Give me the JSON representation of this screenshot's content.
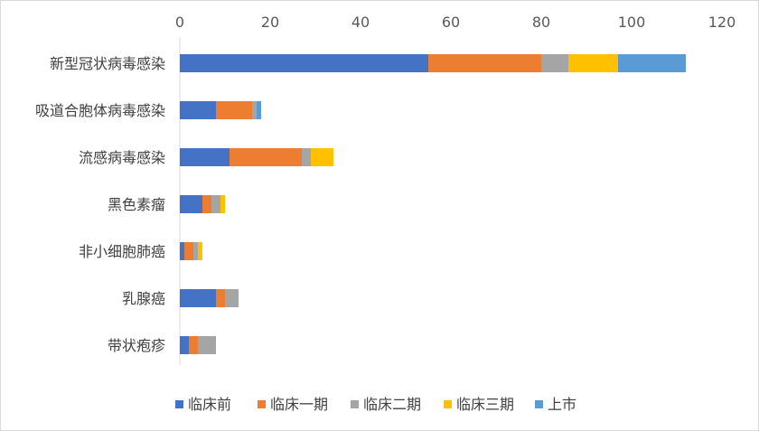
{
  "chart_data": {
    "type": "bar",
    "orientation": "horizontal",
    "stacked": true,
    "title": "",
    "xlabel": "",
    "ylabel": "",
    "xlim": [
      0,
      120
    ],
    "x_ticks": [
      "0",
      "20",
      "40",
      "60",
      "80",
      "100",
      "120"
    ],
    "x_tick_values": [
      0,
      20,
      40,
      60,
      80,
      100,
      120
    ],
    "x_axis_position": "top",
    "grid": false,
    "legend_position": "bottom",
    "categories": [
      "新型冠状病毒感染",
      "吸道合胞体病毒感染",
      "流感病毒感染",
      "黑色素瘤",
      "非小细胞肺癌",
      "乳腺癌",
      "带状疱疹"
    ],
    "series": [
      {
        "name": "临床前",
        "color": "#4472c4",
        "values": [
          55,
          8,
          11,
          5,
          1,
          8,
          2
        ]
      },
      {
        "name": "临床一期",
        "color": "#ed7d31",
        "values": [
          25,
          8,
          16,
          2,
          2,
          2,
          2
        ]
      },
      {
        "name": "临床二期",
        "color": "#a5a5a5",
        "values": [
          6,
          1,
          2,
          2,
          1,
          3,
          4
        ]
      },
      {
        "name": "临床三期",
        "color": "#ffc000",
        "values": [
          11,
          0,
          5,
          1,
          1,
          0,
          0
        ]
      },
      {
        "name": "上市",
        "color": "#5b9bd5",
        "values": [
          15,
          1,
          0,
          0,
          0,
          0,
          0
        ]
      }
    ]
  }
}
